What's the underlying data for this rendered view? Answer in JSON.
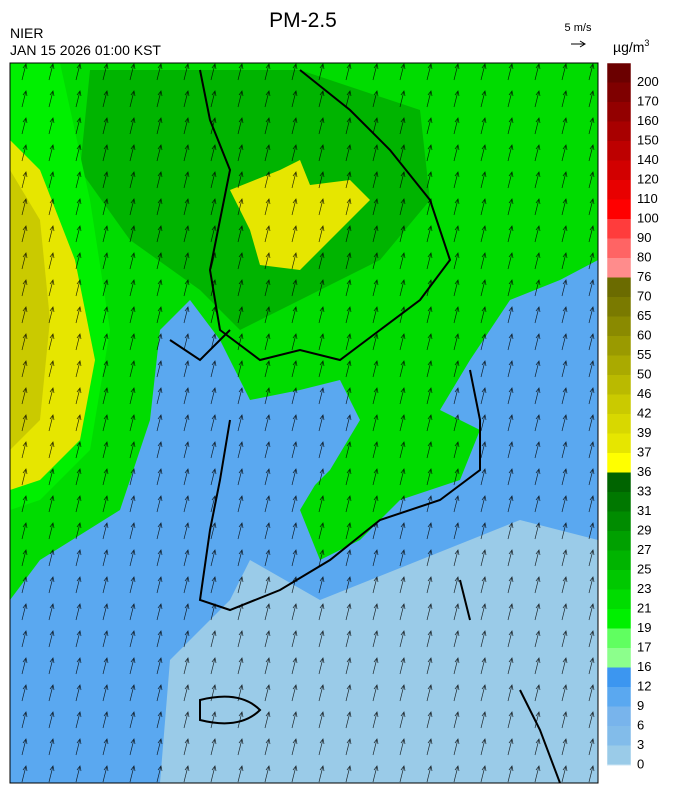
{
  "header": {
    "title": "PM-2.5",
    "agency": "NIER",
    "datetime": "JAN 15 2026 01:00 KST",
    "wind_scale": "5 m/s",
    "unit": "µg/m",
    "unit_sup": "3"
  },
  "colorbar": {
    "ticks": [
      200,
      170,
      160,
      150,
      140,
      120,
      110,
      100,
      90,
      80,
      76,
      70,
      65,
      60,
      55,
      50,
      46,
      42,
      39,
      37,
      36,
      33,
      31,
      29,
      27,
      25,
      23,
      21,
      19,
      17,
      16,
      12,
      9,
      6,
      3,
      0
    ],
    "colors": [
      "#6b0000",
      "#7f0000",
      "#930000",
      "#a80000",
      "#bd0000",
      "#d20000",
      "#e80000",
      "#ff0000",
      "#ff3c3c",
      "#ff6464",
      "#ff8c8c",
      "#6b6b00",
      "#7a7a00",
      "#8a8a00",
      "#9a9a00",
      "#aaaa00",
      "#baba00",
      "#caca00",
      "#d8d800",
      "#e6e600",
      "#ffff00",
      "#006400",
      "#007800",
      "#008c00",
      "#00a000",
      "#00b400",
      "#00c800",
      "#00dc00",
      "#00f000",
      "#60ff60",
      "#8cff8c",
      "#3c96f0",
      "#5aa8f0",
      "#78b4ec",
      "#82bcea",
      "#9acbe8"
    ]
  }
}
